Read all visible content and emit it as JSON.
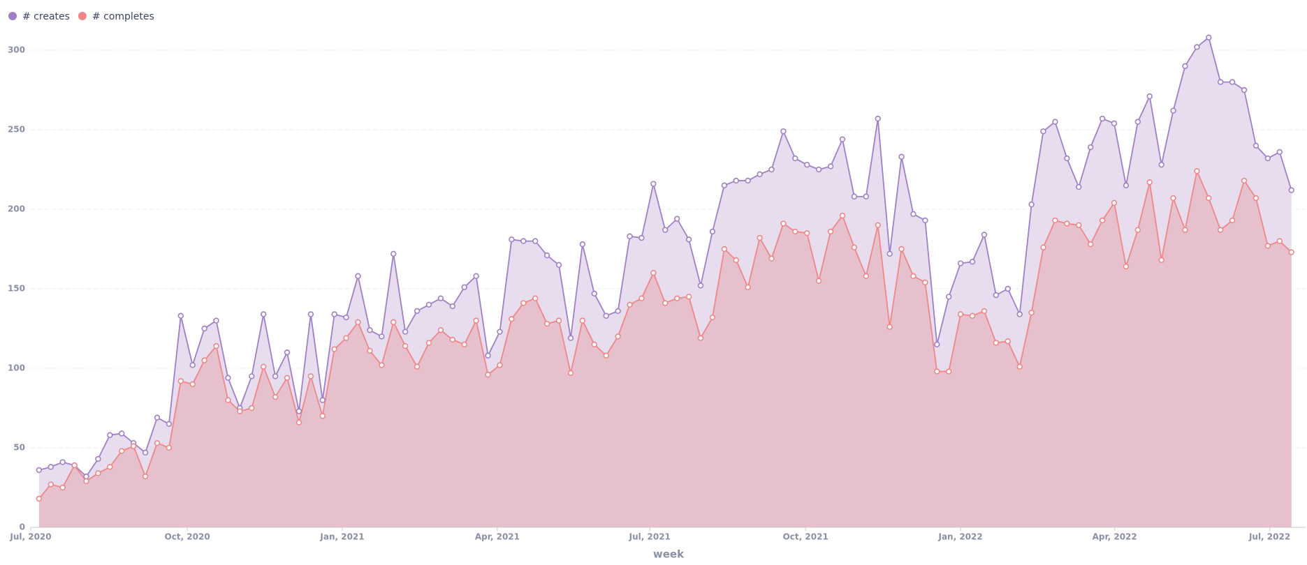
{
  "chart_data": {
    "type": "area",
    "x_label": "week",
    "categories": [
      null,
      null,
      null,
      null,
      null,
      null,
      null,
      null,
      null,
      null,
      null,
      null,
      null,
      null,
      null,
      null,
      null,
      null,
      null,
      null,
      null,
      null,
      null,
      null,
      null,
      null,
      null,
      null,
      null,
      null,
      null,
      null,
      null,
      null,
      null,
      null,
      null,
      null,
      null,
      null,
      null,
      null,
      null,
      null,
      null,
      null,
      null,
      null,
      null,
      null,
      null,
      null,
      null,
      null,
      null,
      null,
      null,
      null,
      null,
      null,
      null,
      null,
      null,
      null,
      null,
      null,
      null,
      null,
      null,
      null,
      null,
      null,
      null,
      null,
      null,
      null,
      null,
      null,
      null,
      null,
      null,
      null,
      null,
      null,
      null,
      null,
      null,
      null,
      null,
      null,
      null,
      null,
      null,
      null,
      null,
      null,
      null,
      null,
      null,
      null,
      null,
      null,
      null,
      null,
      null,
      null,
      null
    ],
    "xlim": [
      -0.7,
      107.2
    ],
    "xticks": [
      {
        "value": -0.7,
        "label": "Jul, 2020"
      },
      {
        "value": 12.55,
        "label": "Oct, 2020"
      },
      {
        "value": 25.67,
        "label": "Jan, 2021"
      },
      {
        "value": 38.79,
        "label": "Apr, 2021"
      },
      {
        "value": 51.7,
        "label": "Jul, 2021"
      },
      {
        "value": 64.88,
        "label": "Oct, 2021"
      },
      {
        "value": 78,
        "label": "Jan, 2022"
      },
      {
        "value": 91.04,
        "label": "Apr, 2022"
      },
      {
        "value": 104.16,
        "label": "Jul, 2022"
      }
    ],
    "ylim": [
      0,
      300
    ],
    "yticks": [
      0,
      50,
      100,
      150,
      200,
      250,
      300
    ],
    "grid": true,
    "legend": "top-left",
    "series": [
      {
        "name": "# creates",
        "color": "#a07fc8",
        "fill": "#e8dcef",
        "values": [
          36,
          38,
          41,
          39,
          32,
          43,
          58,
          59,
          53,
          47,
          69,
          65,
          133,
          102,
          125,
          130,
          94,
          75,
          95,
          134,
          95,
          110,
          73,
          134,
          80,
          134,
          132,
          158,
          124,
          120,
          172,
          123,
          136,
          140,
          144,
          139,
          151,
          158,
          108,
          123,
          181,
          180,
          180,
          171,
          165,
          119,
          178,
          147,
          133,
          136,
          183,
          182,
          216,
          187,
          194,
          181,
          152,
          186,
          215,
          218,
          218,
          222,
          225,
          249,
          232,
          228,
          225,
          227,
          244,
          208,
          208,
          257,
          172,
          233,
          197,
          193,
          115,
          145,
          166,
          167,
          184,
          146,
          150,
          134,
          203,
          249,
          255,
          232,
          214,
          239,
          257,
          254,
          215,
          255,
          271,
          228,
          262,
          290,
          302,
          308,
          280,
          280,
          275,
          240,
          232,
          236,
          212
        ]
      },
      {
        "name": "# completes",
        "color": "#ee8787",
        "fill": "#e6c1cd",
        "values": [
          18,
          27,
          25,
          39,
          29,
          34,
          38,
          48,
          51,
          32,
          53,
          50,
          92,
          90,
          105,
          114,
          80,
          73,
          75,
          101,
          82,
          94,
          66,
          95,
          70,
          112,
          119,
          129,
          111,
          102,
          129,
          114,
          101,
          116,
          124,
          118,
          115,
          130,
          96,
          102,
          131,
          141,
          144,
          128,
          130,
          97,
          130,
          115,
          108,
          120,
          140,
          144,
          160,
          141,
          144,
          145,
          119,
          132,
          175,
          168,
          151,
          182,
          169,
          191,
          186,
          185,
          155,
          186,
          196,
          176,
          158,
          190,
          126,
          175,
          158,
          154,
          98,
          98,
          134,
          133,
          136,
          116,
          117,
          101,
          135,
          176,
          193,
          191,
          190,
          178,
          193,
          204,
          164,
          187,
          217,
          168,
          207,
          187,
          224,
          207,
          187,
          193,
          218,
          207,
          177,
          180,
          173
        ]
      }
    ]
  }
}
